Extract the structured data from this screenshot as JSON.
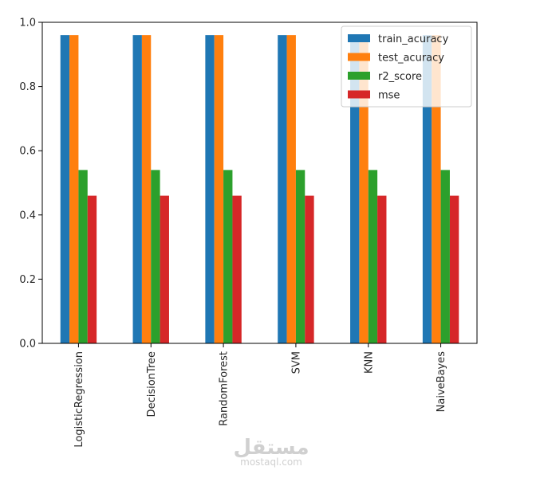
{
  "chart_data": {
    "type": "bar",
    "categories": [
      "LogisticRegression",
      "DecisionTree",
      "RandomForest",
      "SVM",
      "KNN",
      "NaiveBayes"
    ],
    "series": [
      {
        "name": "train_acuracy",
        "color": "#1f77b4",
        "values": [
          0.96,
          0.96,
          0.96,
          0.96,
          0.96,
          0.96
        ]
      },
      {
        "name": "test_acuracy",
        "color": "#ff7f0e",
        "values": [
          0.96,
          0.96,
          0.96,
          0.96,
          0.96,
          0.96
        ]
      },
      {
        "name": "r2_score",
        "color": "#2ca02c",
        "values": [
          0.54,
          0.54,
          0.54,
          0.54,
          0.54,
          0.54
        ]
      },
      {
        "name": "mse",
        "color": "#d62728",
        "values": [
          0.46,
          0.46,
          0.46,
          0.46,
          0.46,
          0.46
        ]
      }
    ],
    "ylim": [
      0,
      1.0
    ],
    "yticks": [
      "0.0",
      "0.2",
      "0.4",
      "0.6",
      "0.8",
      "1.0"
    ],
    "xtick_rotation": 90,
    "grid": false,
    "legend": "upper-right"
  },
  "watermark": {
    "arabic": "مستقل",
    "latin": "mostaql.com"
  }
}
